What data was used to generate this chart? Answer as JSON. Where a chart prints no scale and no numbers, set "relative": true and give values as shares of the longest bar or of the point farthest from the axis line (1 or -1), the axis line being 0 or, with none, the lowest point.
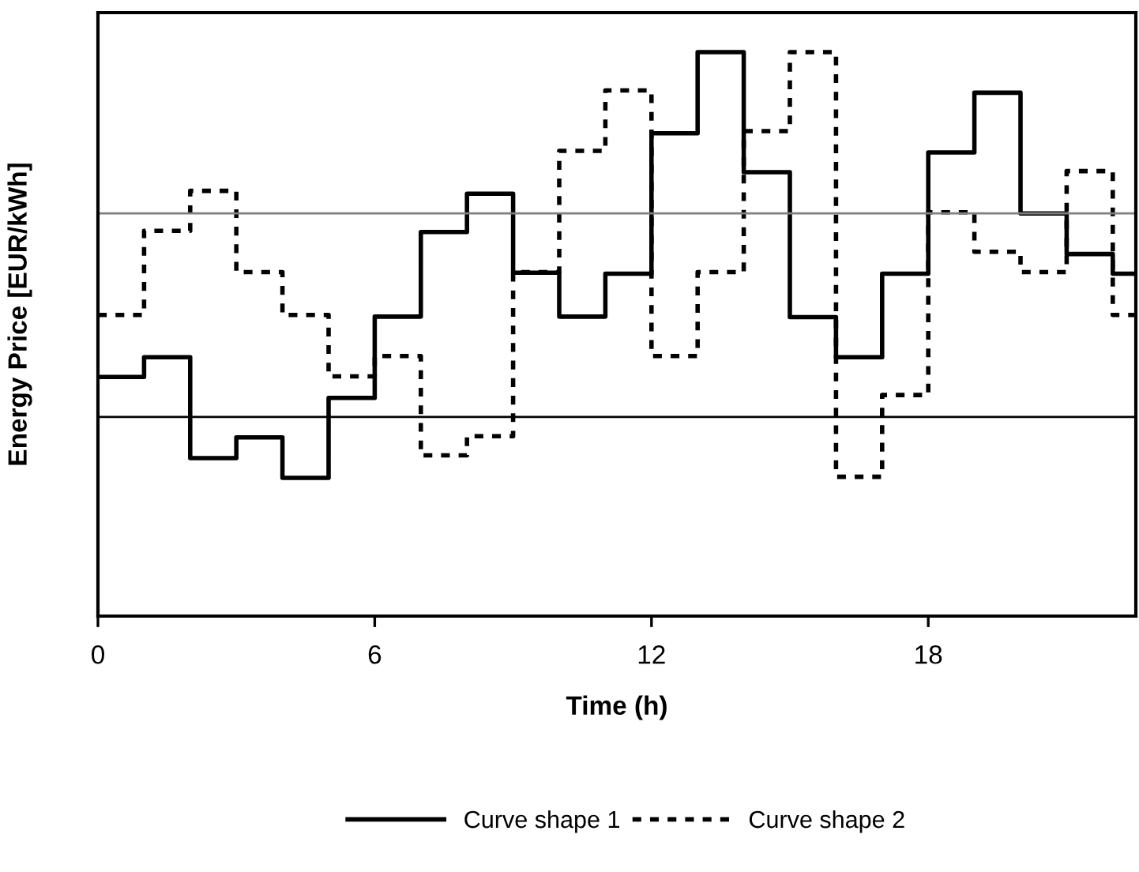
{
  "chart_data": {
    "type": "step",
    "xlabel": "Time (h)",
    "ylabel": "Energy Price [EUR/kWh]",
    "relative": true,
    "x": [
      0,
      1,
      2,
      3,
      4,
      5,
      6,
      7,
      8,
      9,
      10,
      11,
      12,
      13,
      14,
      15,
      16,
      17,
      18,
      19,
      20,
      21,
      22,
      22.5
    ],
    "xlim": [
      0,
      22.5
    ],
    "xticks": [
      0,
      6,
      12,
      18
    ],
    "grid": false,
    "legend": "bottom",
    "series": [
      {
        "name": "Curve shape 1",
        "color": "#000000",
        "line_style": "solid",
        "values": [
          0.424,
          0.459,
          0.28,
          0.317,
          0.245,
          0.387,
          0.531,
          0.681,
          0.749,
          0.609,
          0.531,
          0.607,
          0.856,
          1,
          0.787,
          0.53,
          0.459,
          0.607,
          0.822,
          0.928,
          0.714,
          0.642,
          0.607,
          0.607
        ]
      },
      {
        "name": "Curve shape 2",
        "color": "#000000",
        "line_style": "dotted",
        "values": [
          0.534,
          0.683,
          0.754,
          0.61,
          0.534,
          0.425,
          0.461,
          0.285,
          0.319,
          0.61,
          0.825,
          0.932,
          0.461,
          0.61,
          0.86,
          1,
          0.247,
          0.392,
          0.716,
          0.646,
          0.61,
          0.789,
          0.534,
          0.534
        ]
      }
    ],
    "ref_lines": [
      {
        "axis": "y",
        "value": 0.714,
        "color": "#808080"
      },
      {
        "axis": "y",
        "value": 0.353,
        "color": "#000000"
      }
    ]
  }
}
